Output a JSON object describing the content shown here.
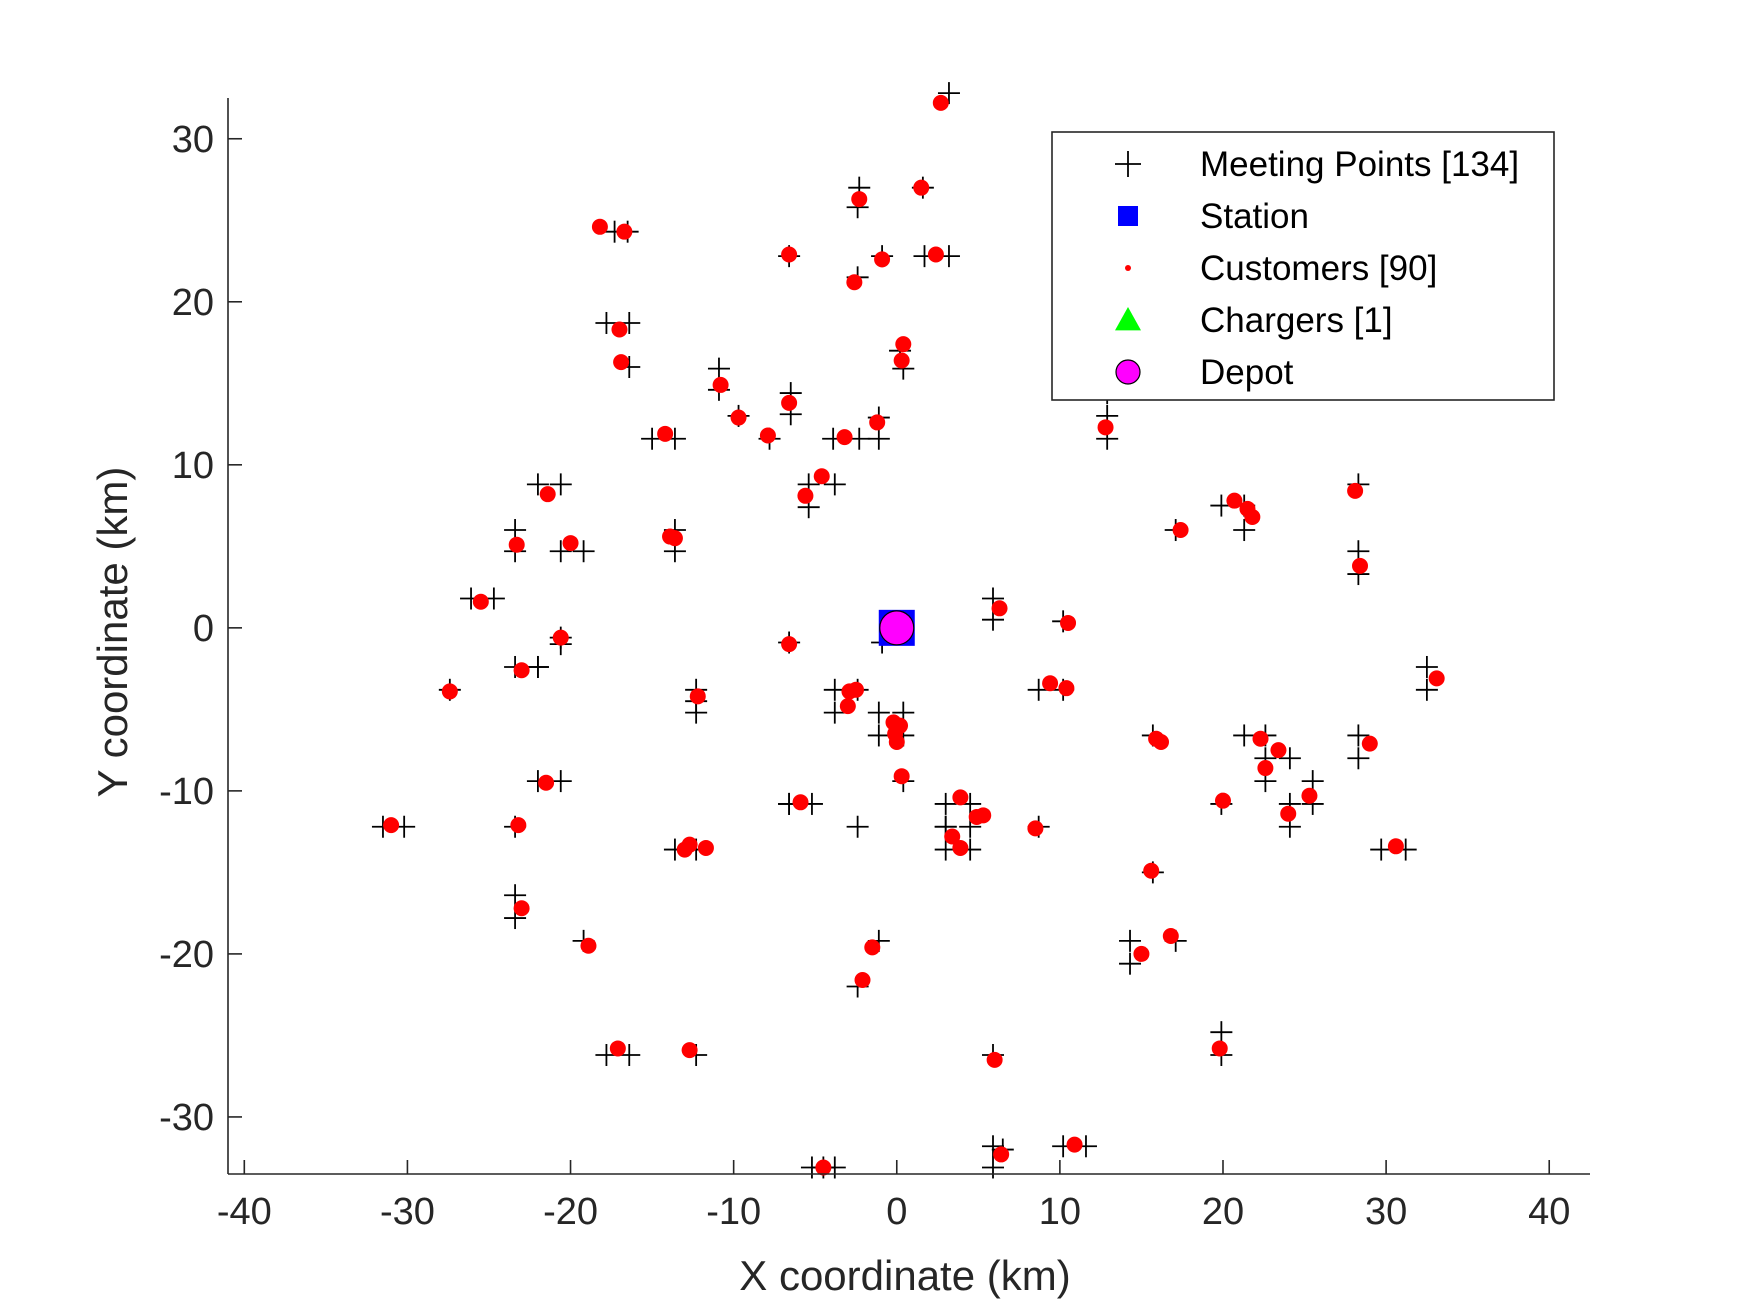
{
  "chart_data": {
    "type": "scatter",
    "xlabel": "X coordinate (km)",
    "ylabel": "Y coordinate (km)",
    "xlim": [
      -41,
      42.5
    ],
    "ylim": [
      -33.5,
      32.5
    ],
    "xticks": [
      -40,
      -30,
      -20,
      -10,
      0,
      10,
      20,
      30,
      40
    ],
    "yticks": [
      -30,
      -20,
      -10,
      0,
      10,
      20,
      30
    ],
    "legend_position": "top-right",
    "grid": false,
    "series": [
      {
        "name": "Meeting Points [134]",
        "marker": "plus",
        "color": "#000000",
        "points": [
          [
            3.2,
            32.8
          ],
          [
            -2.3,
            27
          ],
          [
            -2.4,
            25.8
          ],
          [
            1.6,
            27
          ],
          [
            -17.3,
            24.3
          ],
          [
            -16.5,
            24.3
          ],
          [
            -6.6,
            22.8
          ],
          [
            -0.9,
            22.8
          ],
          [
            1.7,
            22.8
          ],
          [
            3.2,
            22.8
          ],
          [
            -2.4,
            21.5
          ],
          [
            -17.8,
            18.7
          ],
          [
            -16.4,
            18.7
          ],
          [
            -16.4,
            16
          ],
          [
            0.2,
            17
          ],
          [
            0.4,
            15.9
          ],
          [
            -10.9,
            15.9
          ],
          [
            -10.9,
            14.6
          ],
          [
            -6.5,
            14.4
          ],
          [
            -6.5,
            13.1
          ],
          [
            -1.1,
            12.9
          ],
          [
            -9.7,
            13
          ],
          [
            -7.8,
            11.6
          ],
          [
            -15,
            11.6
          ],
          [
            -13.6,
            11.6
          ],
          [
            -3.9,
            11.6
          ],
          [
            -2.3,
            11.6
          ],
          [
            -1.1,
            11.6
          ],
          [
            -22,
            8.8
          ],
          [
            -20.6,
            8.8
          ],
          [
            -3.8,
            8.8
          ],
          [
            -5.4,
            8.8
          ],
          [
            -5.4,
            7.4
          ],
          [
            -23.4,
            6
          ],
          [
            -23.4,
            4.7
          ],
          [
            -13.6,
            6
          ],
          [
            -13.6,
            4.7
          ],
          [
            -20.6,
            4.7
          ],
          [
            -19.2,
            4.7
          ],
          [
            -26.1,
            1.8
          ],
          [
            -24.7,
            1.8
          ],
          [
            -20.6,
            -0.6
          ],
          [
            -6.6,
            -0.9
          ],
          [
            5.9,
            1.8
          ],
          [
            5.9,
            0.5
          ],
          [
            10.2,
            0.4
          ],
          [
            -27.4,
            -3.8
          ],
          [
            -23.4,
            -2.4
          ],
          [
            -22,
            -2.4
          ],
          [
            -12.3,
            -3.8
          ],
          [
            -12.3,
            -5.2
          ],
          [
            -3.8,
            -3.8
          ],
          [
            -3.8,
            -5.2
          ],
          [
            -2.4,
            -3.8
          ],
          [
            -1.1,
            -5.2
          ],
          [
            0.4,
            -5.2
          ],
          [
            -1.1,
            -6.6
          ],
          [
            0.4,
            -6.6
          ],
          [
            8.7,
            -3.8
          ],
          [
            10.2,
            -3.8
          ],
          [
            15.7,
            -6.6
          ],
          [
            21.3,
            -6.6
          ],
          [
            22.6,
            -6.6
          ],
          [
            22.6,
            -8
          ],
          [
            24.1,
            -8
          ],
          [
            25.5,
            -9.4
          ],
          [
            22.6,
            -9.4
          ],
          [
            -22,
            -9.4
          ],
          [
            -20.6,
            -9.4
          ],
          [
            0.4,
            -9.4
          ],
          [
            -6.6,
            -10.8
          ],
          [
            -5.2,
            -10.8
          ],
          [
            3,
            -10.8
          ],
          [
            4.5,
            -10.8
          ],
          [
            3,
            -12.2
          ],
          [
            4.5,
            -12.2
          ],
          [
            3,
            -13.6
          ],
          [
            4.5,
            -13.6
          ],
          [
            8.7,
            -12.2
          ],
          [
            19.9,
            -10.8
          ],
          [
            24.1,
            -10.8
          ],
          [
            25.5,
            -10.8
          ],
          [
            24.1,
            -12.2
          ],
          [
            -31.5,
            -12.2
          ],
          [
            -30.2,
            -12.2
          ],
          [
            -23.4,
            -12.2
          ],
          [
            -13.6,
            -13.6
          ],
          [
            -12.3,
            -13.6
          ],
          [
            15.7,
            -15
          ],
          [
            29.7,
            -13.6
          ],
          [
            31.2,
            -13.6
          ],
          [
            -23.4,
            -16.4
          ],
          [
            -23.4,
            -17.8
          ],
          [
            -19.2,
            -19.2
          ],
          [
            -1.1,
            -19.2
          ],
          [
            14.3,
            -19.2
          ],
          [
            14.3,
            -20.6
          ],
          [
            17.1,
            -19.2
          ],
          [
            -2.4,
            -22
          ],
          [
            -17.8,
            -26.2
          ],
          [
            -16.4,
            -26.2
          ],
          [
            -12.3,
            -26.2
          ],
          [
            5.9,
            -26.2
          ],
          [
            19.9,
            -24.8
          ],
          [
            19.9,
            -26.2
          ],
          [
            5.9,
            -31.8
          ],
          [
            5.9,
            -33.1
          ],
          [
            10.2,
            -31.8
          ],
          [
            11.6,
            -31.8
          ],
          [
            -5.2,
            -33.1
          ],
          [
            -3.8,
            -33.1
          ],
          [
            12.9,
            14.4
          ],
          [
            12.9,
            13
          ],
          [
            12.9,
            11.6
          ],
          [
            19.9,
            7.5
          ],
          [
            21.3,
            7.5
          ],
          [
            21.3,
            6
          ],
          [
            17.1,
            6
          ],
          [
            28.3,
            8.8
          ],
          [
            28.3,
            4.7
          ],
          [
            28.3,
            3.3
          ],
          [
            32.5,
            -2.4
          ],
          [
            32.5,
            -3.8
          ],
          [
            28.3,
            -6.6
          ],
          [
            28.3,
            -8
          ],
          [
            -22,
            -2.4
          ],
          [
            -20.6,
            -1
          ],
          [
            -6.6,
            -10.8
          ],
          [
            -12.3,
            -4.5
          ],
          [
            -2.4,
            -12.2
          ],
          [
            3,
            -12.2
          ],
          [
            -0.9,
            -0.9
          ],
          [
            6.5,
            -32
          ],
          [
            -4.5,
            -33.1
          ]
        ]
      },
      {
        "name": "Station",
        "marker": "square",
        "color": "#0000ff",
        "points": [
          [
            0,
            0
          ]
        ]
      },
      {
        "name": "Customers [90]",
        "marker": "dot",
        "color": "#ff0000",
        "points": [
          [
            2.7,
            32.2
          ],
          [
            -2.3,
            26.3
          ],
          [
            1.5,
            27
          ],
          [
            -18.2,
            24.6
          ],
          [
            -16.7,
            24.3
          ],
          [
            -6.6,
            22.9
          ],
          [
            -0.9,
            22.6
          ],
          [
            2.4,
            22.9
          ],
          [
            -2.6,
            21.2
          ],
          [
            -16.9,
            16.3
          ],
          [
            0.4,
            17.4
          ],
          [
            0.3,
            16.4
          ],
          [
            -10.8,
            14.9
          ],
          [
            -6.6,
            13.8
          ],
          [
            -9.7,
            12.9
          ],
          [
            -7.9,
            11.8
          ],
          [
            -14.2,
            11.9
          ],
          [
            -3.2,
            11.7
          ],
          [
            -1.2,
            12.6
          ],
          [
            -4.6,
            9.3
          ],
          [
            -5.6,
            8.1
          ],
          [
            -21.4,
            8.2
          ],
          [
            -23.3,
            5.1
          ],
          [
            -13.9,
            5.6
          ],
          [
            -13.6,
            5.5
          ],
          [
            -20,
            5.2
          ],
          [
            -25.5,
            1.6
          ],
          [
            -20.6,
            -0.6
          ],
          [
            -6.6,
            -1
          ],
          [
            6.3,
            1.2
          ],
          [
            10.5,
            0.3
          ],
          [
            -27.4,
            -3.9
          ],
          [
            -23,
            -2.6
          ],
          [
            -12.2,
            -4.2
          ],
          [
            -2.9,
            -3.9
          ],
          [
            -3,
            -4.8
          ],
          [
            -0.2,
            -5.8
          ],
          [
            -0.1,
            -6.5
          ],
          [
            0,
            -7
          ],
          [
            9.4,
            -3.4
          ],
          [
            10.4,
            -3.7
          ],
          [
            16.2,
            -7
          ],
          [
            22.3,
            -6.8
          ],
          [
            23.4,
            -7.5
          ],
          [
            22.6,
            -8.6
          ],
          [
            29,
            -7.1
          ],
          [
            -21.5,
            -9.5
          ],
          [
            0.3,
            -9.1
          ],
          [
            -5.9,
            -10.7
          ],
          [
            3.9,
            -10.4
          ],
          [
            4.9,
            -11.6
          ],
          [
            5.3,
            -11.5
          ],
          [
            3.4,
            -12.8
          ],
          [
            3.9,
            -13.5
          ],
          [
            8.5,
            -12.3
          ],
          [
            20,
            -10.6
          ],
          [
            24,
            -11.4
          ],
          [
            25.3,
            -10.3
          ],
          [
            -31,
            -12.1
          ],
          [
            -23.2,
            -12.1
          ],
          [
            -13,
            -13.6
          ],
          [
            -12.7,
            -13.3
          ],
          [
            15.6,
            -14.9
          ],
          [
            30.6,
            -13.4
          ],
          [
            -23,
            -17.2
          ],
          [
            -18.9,
            -19.5
          ],
          [
            -1.5,
            -19.6
          ],
          [
            15,
            -20
          ],
          [
            16.8,
            -18.9
          ],
          [
            -2.1,
            -21.6
          ],
          [
            -17.1,
            -25.8
          ],
          [
            -12.7,
            -25.9
          ],
          [
            6,
            -26.5
          ],
          [
            19.8,
            -25.8
          ],
          [
            6.4,
            -32.3
          ],
          [
            10.9,
            -31.7
          ],
          [
            -4.5,
            -33.1
          ],
          [
            12.8,
            12.3
          ],
          [
            20.7,
            7.8
          ],
          [
            21.8,
            6.8
          ],
          [
            17.4,
            6
          ],
          [
            28.1,
            8.4
          ],
          [
            28.4,
            3.8
          ],
          [
            33.1,
            -3.1
          ],
          [
            -17,
            18.3
          ],
          [
            -2.5,
            -3.8
          ],
          [
            -11.7,
            -13.5
          ],
          [
            21.5,
            7.3
          ],
          [
            0.2,
            -6
          ],
          [
            15.9,
            -6.8
          ]
        ]
      },
      {
        "name": "Chargers [1]",
        "marker": "triangle",
        "color": "#00ff00",
        "points": [
          [
            0,
            0
          ]
        ]
      },
      {
        "name": "Depot",
        "marker": "circle",
        "color": "#ff00ff",
        "points": [
          [
            0,
            0
          ]
        ]
      }
    ]
  }
}
